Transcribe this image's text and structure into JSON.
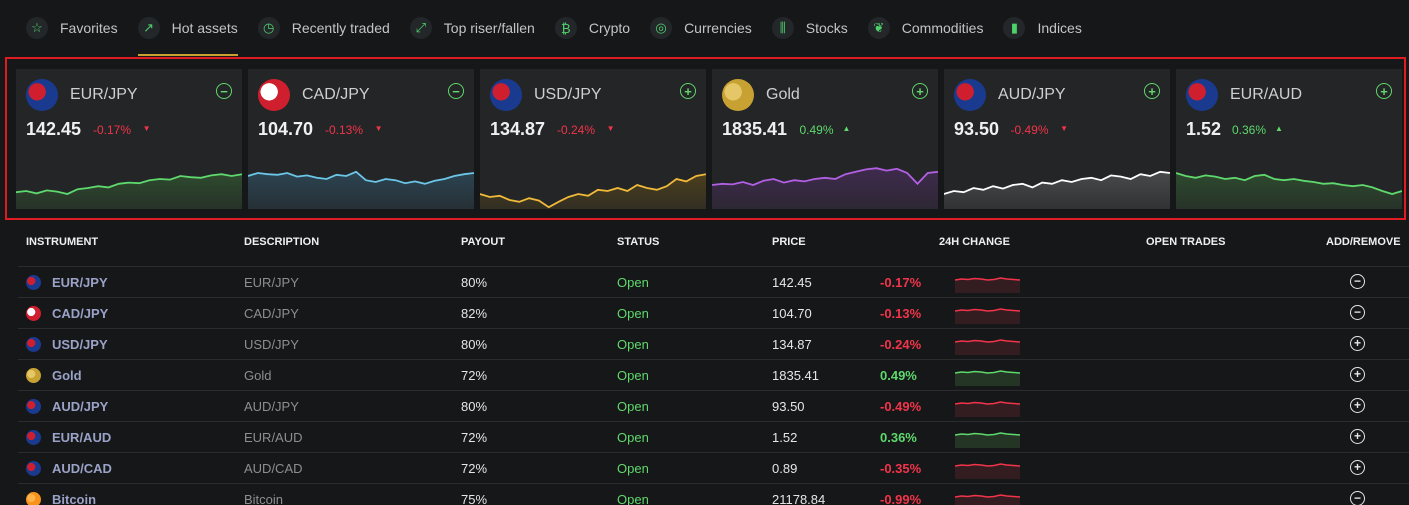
{
  "tabs": [
    {
      "label": "Favorites",
      "icon": "star-icon"
    },
    {
      "label": "Hot assets",
      "icon": "trending-up-icon",
      "active": true
    },
    {
      "label": "Recently traded",
      "icon": "stopwatch-icon"
    },
    {
      "label": "Top riser/fallen",
      "icon": "arrows-diagonal-icon"
    },
    {
      "label": "Crypto",
      "icon": "bitcoin-icon"
    },
    {
      "label": "Currencies",
      "icon": "coins-icon"
    },
    {
      "label": "Stocks",
      "icon": "candlestick-icon"
    },
    {
      "label": "Commodities",
      "icon": "leaf-icon"
    },
    {
      "label": "Indices",
      "icon": "bar-chart-icon"
    }
  ],
  "cards": [
    {
      "name": "EUR/JPY",
      "price": "142.45",
      "change": "-0.17%",
      "dir": "down",
      "toggle": "−",
      "flag": [
        "#1a3a8f",
        "#cf1f2f"
      ],
      "color": "#5fd86d",
      "fill": "#2e4a2e",
      "spark": [
        0.28,
        0.3,
        0.26,
        0.31,
        0.29,
        0.25,
        0.33,
        0.35,
        0.38,
        0.36,
        0.42,
        0.44,
        0.43,
        0.48,
        0.5,
        0.49,
        0.55,
        0.53,
        0.52,
        0.56,
        0.58,
        0.55,
        0.58
      ]
    },
    {
      "name": "CAD/JPY",
      "price": "104.70",
      "change": "-0.13%",
      "dir": "down",
      "toggle": "−",
      "flag": [
        "#cf1f2f",
        "#ffffff"
      ],
      "color": "#6cc6e8",
      "fill": "#2c4452",
      "spark": [
        0.55,
        0.6,
        0.58,
        0.57,
        0.6,
        0.54,
        0.56,
        0.52,
        0.5,
        0.57,
        0.55,
        0.62,
        0.48,
        0.45,
        0.5,
        0.48,
        0.43,
        0.46,
        0.42,
        0.47,
        0.5,
        0.55,
        0.58,
        0.6
      ]
    },
    {
      "name": "USD/JPY",
      "price": "134.87",
      "change": "-0.24%",
      "dir": "down",
      "toggle": "+",
      "flag": [
        "#1a3a8f",
        "#cf1f2f"
      ],
      "color": "#f0b93a",
      "fill": "#4c3f1d",
      "spark": [
        0.25,
        0.2,
        0.22,
        0.15,
        0.12,
        0.18,
        0.14,
        0.03,
        0.12,
        0.2,
        0.25,
        0.22,
        0.32,
        0.3,
        0.35,
        0.3,
        0.4,
        0.35,
        0.32,
        0.38,
        0.5,
        0.46,
        0.55,
        0.58
      ]
    },
    {
      "name": "Gold",
      "price": "1835.41",
      "change": "0.49%",
      "dir": "up",
      "toggle": "+",
      "flag": [
        "#c7a233",
        "#e5c767"
      ],
      "color": "#b15fe3",
      "fill": "#3f2b4e",
      "spark": [
        0.4,
        0.42,
        0.41,
        0.45,
        0.4,
        0.47,
        0.5,
        0.44,
        0.48,
        0.46,
        0.5,
        0.52,
        0.5,
        0.58,
        0.62,
        0.66,
        0.68,
        0.64,
        0.67,
        0.6,
        0.42,
        0.6,
        0.62
      ]
    },
    {
      "name": "AUD/JPY",
      "price": "93.50",
      "change": "-0.49%",
      "dir": "down",
      "toggle": "+",
      "flag": [
        "#1a3a8f",
        "#cf1f2f"
      ],
      "color": "#ffffff",
      "fill": "#494a4b",
      "spark": [
        0.25,
        0.3,
        0.28,
        0.35,
        0.32,
        0.38,
        0.34,
        0.4,
        0.42,
        0.36,
        0.44,
        0.42,
        0.48,
        0.45,
        0.5,
        0.52,
        0.48,
        0.56,
        0.54,
        0.5,
        0.58,
        0.55,
        0.62,
        0.6
      ]
    },
    {
      "name": "EUR/AUD",
      "price": "1.52",
      "change": "0.36%",
      "dir": "up",
      "toggle": "+",
      "flag": [
        "#1a3a8f",
        "#cf1f2f"
      ],
      "color": "#5fd86d",
      "fill": "#2e4a2e",
      "spark": [
        0.6,
        0.55,
        0.52,
        0.56,
        0.54,
        0.5,
        0.52,
        0.48,
        0.55,
        0.57,
        0.5,
        0.48,
        0.5,
        0.47,
        0.45,
        0.42,
        0.43,
        0.4,
        0.38,
        0.4,
        0.36,
        0.3,
        0.25,
        0.3
      ]
    }
  ],
  "table": {
    "headers": [
      "INSTRUMENT",
      "DESCRIPTION",
      "PAYOUT",
      "STATUS",
      "PRICE",
      "24H CHANGE",
      "OPEN TRADES",
      "ADD/REMOVE"
    ],
    "rows": [
      {
        "instrument": "EUR/JPY",
        "description": "EUR/JPY",
        "payout": "80%",
        "status": "Open",
        "price": "142.45",
        "change": "-0.17%",
        "dir": "down",
        "action": "−",
        "flag": [
          "#1a3a8f",
          "#cf1f2f"
        ]
      },
      {
        "instrument": "CAD/JPY",
        "description": "CAD/JPY",
        "payout": "82%",
        "status": "Open",
        "price": "104.70",
        "change": "-0.13%",
        "dir": "down",
        "action": "−",
        "flag": [
          "#cf1f2f",
          "#ffffff"
        ]
      },
      {
        "instrument": "USD/JPY",
        "description": "USD/JPY",
        "payout": "80%",
        "status": "Open",
        "price": "134.87",
        "change": "-0.24%",
        "dir": "down",
        "action": "+",
        "flag": [
          "#1a3a8f",
          "#cf1f2f"
        ]
      },
      {
        "instrument": "Gold",
        "description": "Gold",
        "payout": "72%",
        "status": "Open",
        "price": "1835.41",
        "change": "0.49%",
        "dir": "up",
        "action": "+",
        "flag": [
          "#c7a233",
          "#e5c767"
        ]
      },
      {
        "instrument": "AUD/JPY",
        "description": "AUD/JPY",
        "payout": "80%",
        "status": "Open",
        "price": "93.50",
        "change": "-0.49%",
        "dir": "down",
        "action": "+",
        "flag": [
          "#1a3a8f",
          "#cf1f2f"
        ]
      },
      {
        "instrument": "EUR/AUD",
        "description": "EUR/AUD",
        "payout": "72%",
        "status": "Open",
        "price": "1.52",
        "change": "0.36%",
        "dir": "up",
        "action": "+",
        "flag": [
          "#1a3a8f",
          "#cf1f2f"
        ]
      },
      {
        "instrument": "AUD/CAD",
        "description": "AUD/CAD",
        "payout": "72%",
        "status": "Open",
        "price": "0.89",
        "change": "-0.35%",
        "dir": "down",
        "action": "+",
        "flag": [
          "#1a3a8f",
          "#cf1f2f"
        ]
      },
      {
        "instrument": "Bitcoin",
        "description": "Bitcoin",
        "payout": "75%",
        "status": "Open",
        "price": "21178.84",
        "change": "-0.99%",
        "dir": "down",
        "action": "−",
        "flag": [
          "#f7931a",
          "#ffb14a"
        ]
      }
    ]
  },
  "colors": {
    "positive": "#5fd86d",
    "negative": "#f2344b",
    "accent": "#c7a233",
    "highlight": "#e11b22"
  }
}
